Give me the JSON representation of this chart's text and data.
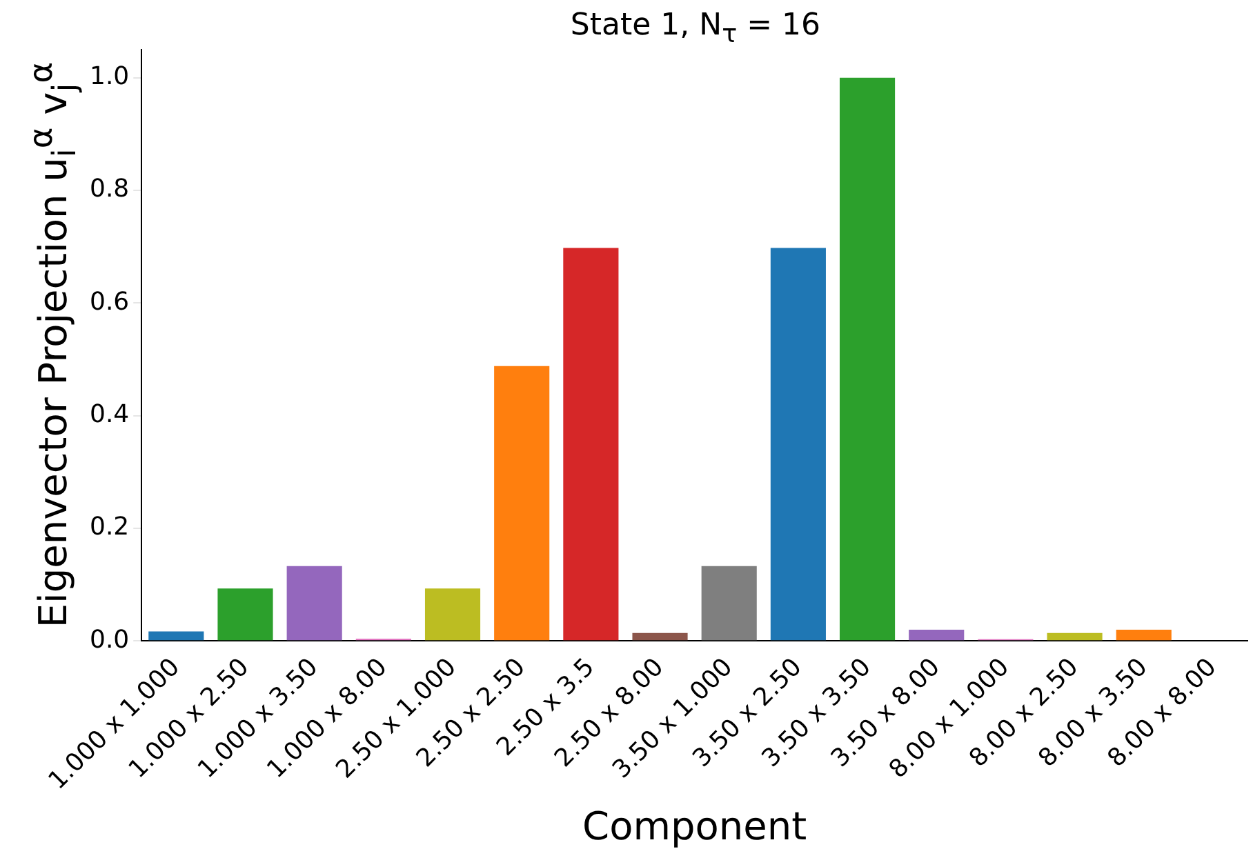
{
  "chart_data": {
    "type": "bar",
    "title": "State 1, N$_{τ}$ = 16",
    "xlabel": "Component",
    "ylabel": "Eigenvector Projection u$_{i}$$^{α}$ v$_{j}$$^{α}$",
    "categories": [
      "1.000 x 1.000",
      "1.000 x 2.50",
      "1.000 x 3.50",
      "1.000 x 8.00",
      "2.50 x 1.000",
      "2.50 x 2.50",
      "2.50 x 3.5",
      "2.50 x 8.00",
      "3.50 x 1.000",
      "3.50 x 2.50",
      "3.50 x 3.50",
      "3.50 x 8.00",
      "8.00 x 1.000",
      "8.00 x 2.50",
      "8.00 x 3.50",
      "8.00 x 8.00"
    ],
    "values": [
      0.017,
      0.093,
      0.133,
      0.004,
      0.093,
      0.488,
      0.698,
      0.014,
      0.133,
      0.698,
      1.0,
      0.02,
      0.003,
      0.014,
      0.02,
      null
    ],
    "colors": [
      "#1f77b4",
      "#2ca02c",
      "#9467bd",
      "#e377c2",
      "#bcbd22",
      "#ff7f0e",
      "#d62728",
      "#8c564b",
      "#7f7f7f",
      "#1f77b4",
      "#2ca02c",
      "#9467bd",
      "#e377c2",
      "#bcbd22",
      "#ff7f0e",
      "#d62728"
    ],
    "ylim": [
      0,
      1.05
    ],
    "yticks": [
      {
        "value": 0,
        "label": "0.0"
      },
      {
        "value": 0.2,
        "label": "0.2"
      },
      {
        "value": 0.4,
        "label": "0.4"
      },
      {
        "value": 0.6,
        "label": "0.6"
      },
      {
        "value": 0.8,
        "label": "0.8"
      },
      {
        "value": 1,
        "label": "1.0"
      }
    ],
    "grid": false,
    "legend": false
  }
}
